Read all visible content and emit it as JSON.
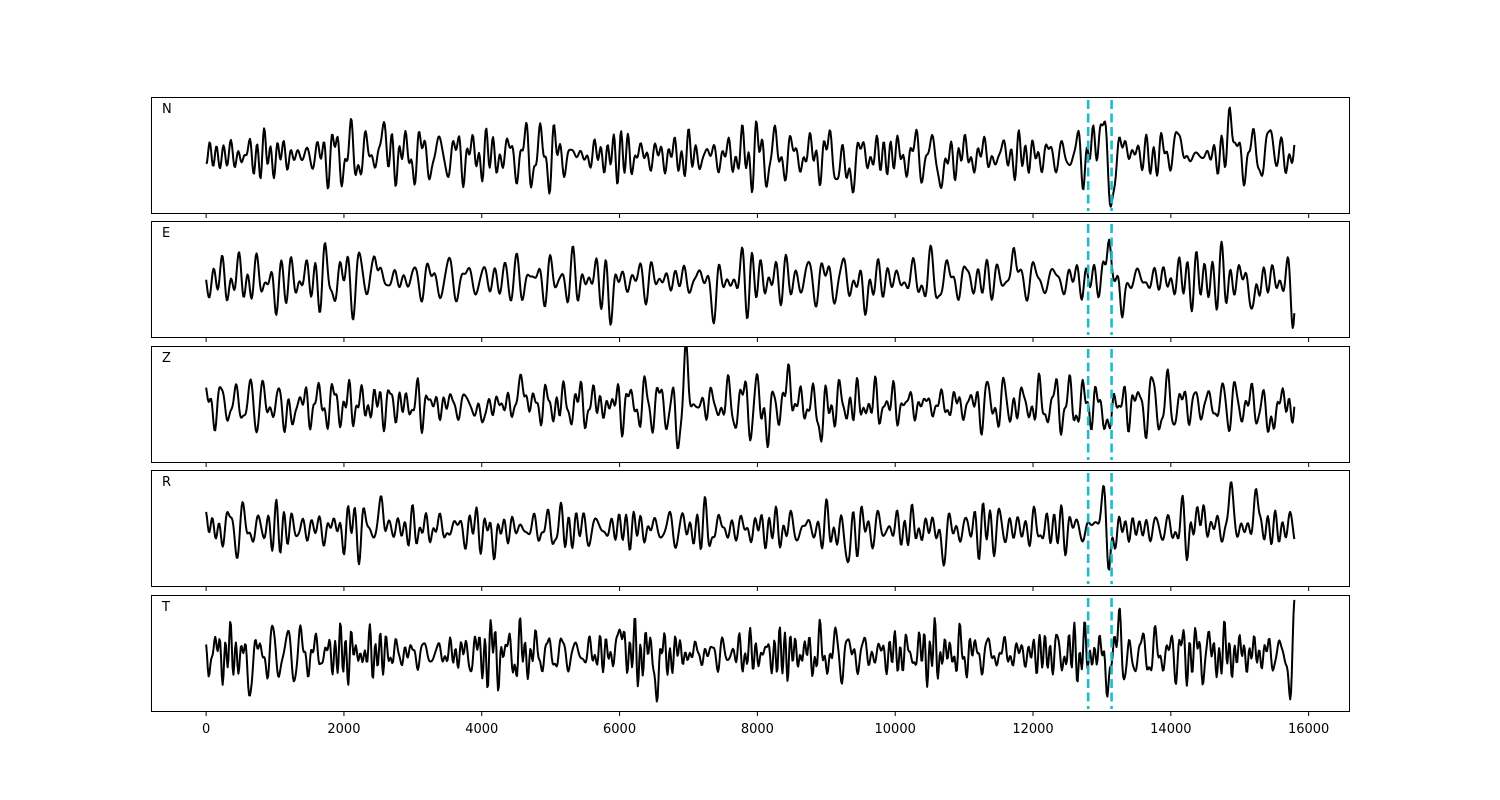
{
  "chart_data": {
    "type": "line",
    "colors": {
      "trace": "#000000",
      "marker": "#17becf",
      "frame": "#000000"
    },
    "xlim": [
      -800,
      16600
    ],
    "ylim": [
      -1,
      1
    ],
    "n_samples": 15800,
    "x_ticks": [
      0,
      2000,
      4000,
      6000,
      8000,
      10000,
      12000,
      14000,
      16000
    ],
    "x_tick_labels": [
      "0",
      "2000",
      "4000",
      "6000",
      "8000",
      "10000",
      "12000",
      "14000",
      "16000"
    ],
    "markers": [
      12800,
      13140
    ],
    "grid": false,
    "panels": [
      {
        "label": "N",
        "seed": 11,
        "bursts": [
          {
            "x": 2560,
            "amp": 0.55,
            "width": 40
          },
          {
            "x": 9300,
            "amp": -0.65,
            "width": 60
          },
          {
            "x": 10700,
            "amp": -0.45,
            "width": 60
          },
          {
            "x": 13000,
            "amp": 0.75,
            "width": 70
          },
          {
            "x": 13130,
            "amp": -0.85,
            "width": 60
          },
          {
            "x": 13350,
            "amp": 0.35,
            "width": 50
          },
          {
            "x": 14080,
            "amp": 0.55,
            "width": 40
          },
          {
            "x": 14860,
            "amp": 0.95,
            "width": 40
          },
          {
            "x": 15450,
            "amp": 0.45,
            "width": 40
          }
        ]
      },
      {
        "label": "E",
        "seed": 23,
        "bursts": [
          {
            "x": 1010,
            "amp": -0.45,
            "width": 40
          },
          {
            "x": 2450,
            "amp": 0.55,
            "width": 40
          },
          {
            "x": 5870,
            "amp": -0.55,
            "width": 50
          },
          {
            "x": 7380,
            "amp": -0.55,
            "width": 50
          },
          {
            "x": 9560,
            "amp": -0.55,
            "width": 50
          },
          {
            "x": 11720,
            "amp": 0.6,
            "width": 40
          },
          {
            "x": 13100,
            "amp": 0.95,
            "width": 40
          },
          {
            "x": 13290,
            "amp": -0.75,
            "width": 40
          },
          {
            "x": 15210,
            "amp": -0.7,
            "width": 40
          },
          {
            "x": 15770,
            "amp": -0.65,
            "width": 40
          }
        ]
      },
      {
        "label": "Z",
        "seed": 37,
        "bursts": [
          {
            "x": 1200,
            "amp": -0.45,
            "width": 40
          },
          {
            "x": 4000,
            "amp": -0.45,
            "width": 40
          },
          {
            "x": 4590,
            "amp": 0.6,
            "width": 40
          },
          {
            "x": 6830,
            "amp": -0.75,
            "width": 40
          },
          {
            "x": 6960,
            "amp": 0.95,
            "width": 40
          },
          {
            "x": 8160,
            "amp": -0.55,
            "width": 40
          },
          {
            "x": 8460,
            "amp": 0.65,
            "width": 40
          },
          {
            "x": 8930,
            "amp": -0.55,
            "width": 40
          },
          {
            "x": 13070,
            "amp": -0.6,
            "width": 40
          },
          {
            "x": 15430,
            "amp": -0.65,
            "width": 40
          }
        ]
      },
      {
        "label": "R",
        "seed": 53,
        "bursts": [
          {
            "x": 2550,
            "amp": 0.55,
            "width": 40
          },
          {
            "x": 4180,
            "amp": -0.4,
            "width": 40
          },
          {
            "x": 9300,
            "amp": -0.55,
            "width": 50
          },
          {
            "x": 10700,
            "amp": -0.45,
            "width": 50
          },
          {
            "x": 13020,
            "amp": 0.85,
            "width": 60
          },
          {
            "x": 13100,
            "amp": -0.95,
            "width": 50
          },
          {
            "x": 14470,
            "amp": 0.5,
            "width": 40
          },
          {
            "x": 14870,
            "amp": 0.85,
            "width": 40
          },
          {
            "x": 15240,
            "amp": 0.75,
            "width": 40
          }
        ]
      },
      {
        "label": "T",
        "seed": 71,
        "bursts": [
          {
            "x": 620,
            "amp": -0.6,
            "width": 40
          },
          {
            "x": 6020,
            "amp": 0.6,
            "width": 40
          },
          {
            "x": 6550,
            "amp": -0.6,
            "width": 40
          },
          {
            "x": 13100,
            "amp": -0.6,
            "width": 40
          },
          {
            "x": 13260,
            "amp": 0.95,
            "width": 40
          },
          {
            "x": 13330,
            "amp": -0.65,
            "width": 40
          },
          {
            "x": 15730,
            "amp": -0.65,
            "width": 40
          },
          {
            "x": 15800,
            "amp": 0.65,
            "width": 40
          }
        ]
      }
    ]
  }
}
